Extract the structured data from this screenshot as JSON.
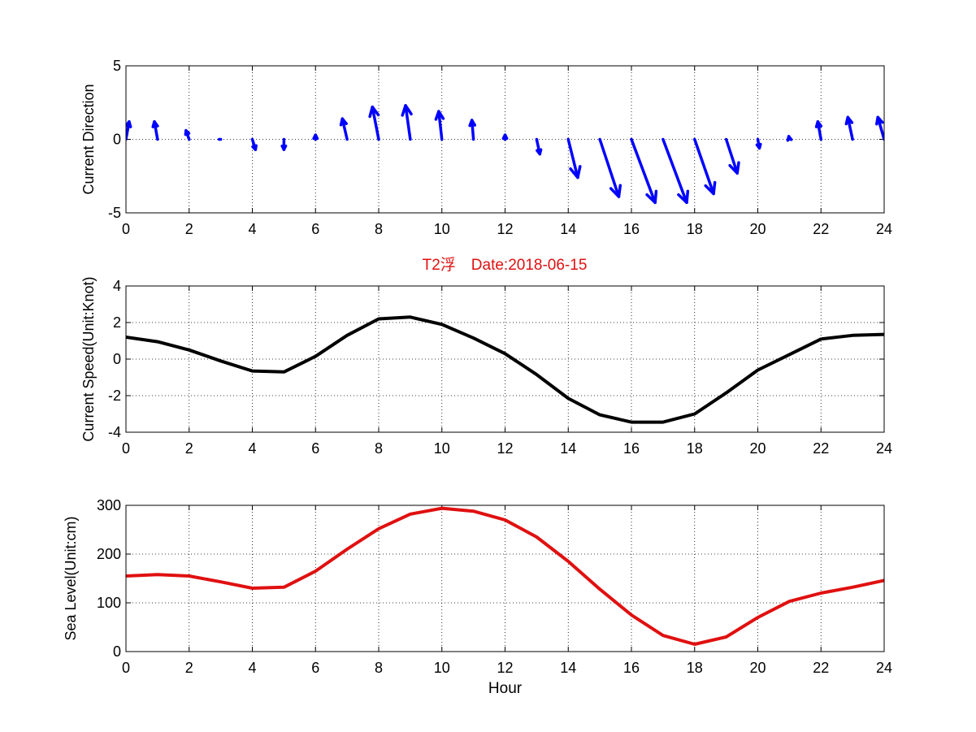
{
  "figure": {
    "title": "T2浮　Date:2018-06-15",
    "title_color": "#e01010"
  },
  "chart_data": [
    {
      "type": "quiver",
      "ylabel": "Current Direction",
      "xlabel": "",
      "xlim": [
        0,
        24
      ],
      "ylim": [
        -5,
        5
      ],
      "xticks": [
        "0",
        "2",
        "4",
        "6",
        "8",
        "10",
        "12",
        "14",
        "16",
        "18",
        "20",
        "22",
        "24"
      ],
      "yticks": [
        "-5",
        "0",
        "5"
      ],
      "grid": true,
      "color": "#0000ff",
      "x": [
        0,
        1,
        2,
        3,
        4,
        5,
        6,
        7,
        8,
        9,
        10,
        11,
        12,
        13,
        14,
        15,
        16,
        17,
        18,
        19,
        20,
        21,
        22,
        23,
        24
      ],
      "u": [
        0.1,
        -0.1,
        -0.1,
        -0.05,
        0.1,
        0.0,
        0.0,
        -0.15,
        -0.2,
        -0.15,
        -0.1,
        -0.05,
        0.0,
        0.1,
        0.3,
        0.6,
        0.75,
        0.75,
        0.6,
        0.35,
        0.05,
        -0.02,
        -0.1,
        -0.15,
        -0.2
      ],
      "v": [
        1.2,
        1.2,
        0.6,
        0.0,
        -0.7,
        -0.7,
        0.3,
        1.4,
        2.2,
        2.3,
        1.9,
        1.3,
        0.3,
        -1.0,
        -2.6,
        -3.9,
        -4.3,
        -4.3,
        -3.7,
        -2.3,
        -0.6,
        0.2,
        1.2,
        1.5,
        1.5
      ]
    },
    {
      "type": "line",
      "ylabel": "Current Speed(Unit:Knot)",
      "xlabel": "",
      "xlim": [
        0,
        24
      ],
      "ylim": [
        -4,
        4
      ],
      "xticks": [
        "0",
        "2",
        "4",
        "6",
        "8",
        "10",
        "12",
        "14",
        "16",
        "18",
        "20",
        "22",
        "24"
      ],
      "yticks": [
        "-4",
        "-2",
        "0",
        "2",
        "4"
      ],
      "grid": true,
      "color": "#000000",
      "x": [
        0,
        1,
        2,
        3,
        4,
        5,
        6,
        7,
        8,
        9,
        10,
        11,
        12,
        13,
        14,
        15,
        16,
        17,
        18,
        19,
        20,
        21,
        22,
        23,
        24
      ],
      "y": [
        1.2,
        0.95,
        0.5,
        -0.1,
        -0.65,
        -0.7,
        0.15,
        1.3,
        2.2,
        2.3,
        1.9,
        1.15,
        0.3,
        -0.85,
        -2.15,
        -3.05,
        -3.45,
        -3.45,
        -3.0,
        -1.85,
        -0.6,
        0.25,
        1.1,
        1.3,
        1.35
      ]
    },
    {
      "type": "line",
      "ylabel": "Sea Level(Unit:cm)",
      "xlabel": "Hour",
      "xlim": [
        0,
        24
      ],
      "ylim": [
        0,
        300
      ],
      "xticks": [
        "0",
        "2",
        "4",
        "6",
        "8",
        "10",
        "12",
        "14",
        "16",
        "18",
        "20",
        "22",
        "24"
      ],
      "yticks": [
        "0",
        "100",
        "200",
        "300"
      ],
      "grid": true,
      "color": "#e01010",
      "x": [
        0,
        1,
        2,
        3,
        4,
        5,
        6,
        7,
        8,
        9,
        10,
        11,
        12,
        13,
        14,
        15,
        16,
        17,
        18,
        19,
        20,
        21,
        22,
        23,
        24
      ],
      "y": [
        155,
        158,
        155,
        143,
        130,
        132,
        165,
        210,
        252,
        282,
        294,
        288,
        270,
        235,
        185,
        128,
        75,
        33,
        15,
        30,
        70,
        103,
        120,
        132,
        146
      ]
    }
  ]
}
